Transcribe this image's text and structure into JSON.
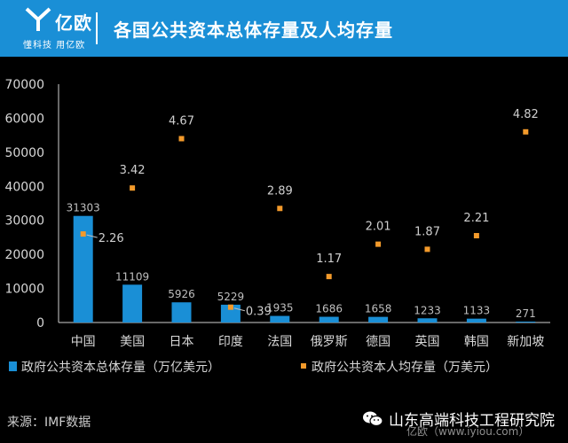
{
  "header": {
    "logo_name": "亿欧",
    "logo_slogan": "懂科技 用亿欧",
    "title": "各国公共资本总体存量及人均存量"
  },
  "footer": {
    "source": "来源：IMF数据",
    "brand": "山东高端科技工程研究院",
    "watermark": "亿欧（www.iyiou.com）"
  },
  "colors": {
    "header_bg": "#1a8fd6",
    "bar": "#1a8fd6",
    "dot": "#f39a2b",
    "background": "#000000"
  },
  "chart_data": {
    "type": "bar",
    "categories": [
      "中国",
      "美国",
      "日本",
      "印度",
      "法国",
      "俄罗斯",
      "德国",
      "英国",
      "韩国",
      "新加坡"
    ],
    "ylim": [
      0,
      70000
    ],
    "yticks": [
      0,
      10000,
      20000,
      30000,
      40000,
      50000,
      60000,
      70000
    ],
    "legend_position": "bottom",
    "grid": false,
    "series": [
      {
        "name": "政府公共资本总体存量（万亿美元）",
        "kind": "bar",
        "values": [
          31303,
          11109,
          5926,
          5229,
          1935,
          1686,
          1658,
          1233,
          1133,
          271
        ],
        "labels": [
          "31303",
          "11109",
          "5926",
          "5229",
          "1935",
          "1686",
          "1658",
          "1233",
          "1133",
          "271"
        ]
      },
      {
        "name": "政府公共资本人均存量（万美元）",
        "kind": "scatter",
        "values": [
          2.26,
          3.42,
          4.67,
          0.39,
          2.89,
          1.17,
          2.01,
          1.87,
          2.21,
          4.82
        ],
        "plotted_left_axis": [
          26000,
          39500,
          54000,
          4500,
          33500,
          13500,
          23000,
          21500,
          25500,
          56000
        ],
        "labels": [
          "2.26",
          "3.42",
          "4.67",
          "0.39",
          "2.89",
          "1.17",
          "2.01",
          "1.87",
          "2.21",
          "4.82"
        ]
      }
    ]
  }
}
